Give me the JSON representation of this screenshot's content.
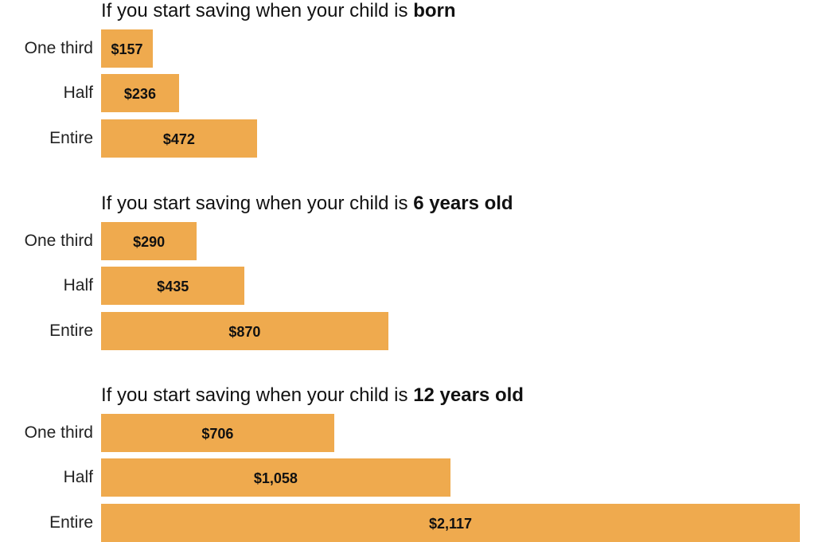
{
  "chart_data": {
    "type": "bar",
    "orientation": "horizontal",
    "bar_color": "#EFAA4E",
    "categories": [
      "One third",
      "Half",
      "Entire"
    ],
    "panels": [
      {
        "title_prefix": "If you start saving when your child is ",
        "title_bold": "born",
        "values": [
          157,
          236,
          472
        ],
        "value_labels": [
          "$157",
          "$236",
          "$472"
        ]
      },
      {
        "title_prefix": "If you start saving when your child is ",
        "title_bold": "6 years old",
        "values": [
          290,
          435,
          870
        ],
        "value_labels": [
          "$290",
          "$435",
          "$870"
        ]
      },
      {
        "title_prefix": "If you start saving when your child is ",
        "title_bold": "12 years old",
        "values": [
          706,
          1058,
          2117
        ],
        "value_labels": [
          "$706",
          "$1,058",
          "$2,117"
        ]
      }
    ],
    "xlim": [
      0,
      2117
    ],
    "grid": false,
    "legend": "none"
  }
}
